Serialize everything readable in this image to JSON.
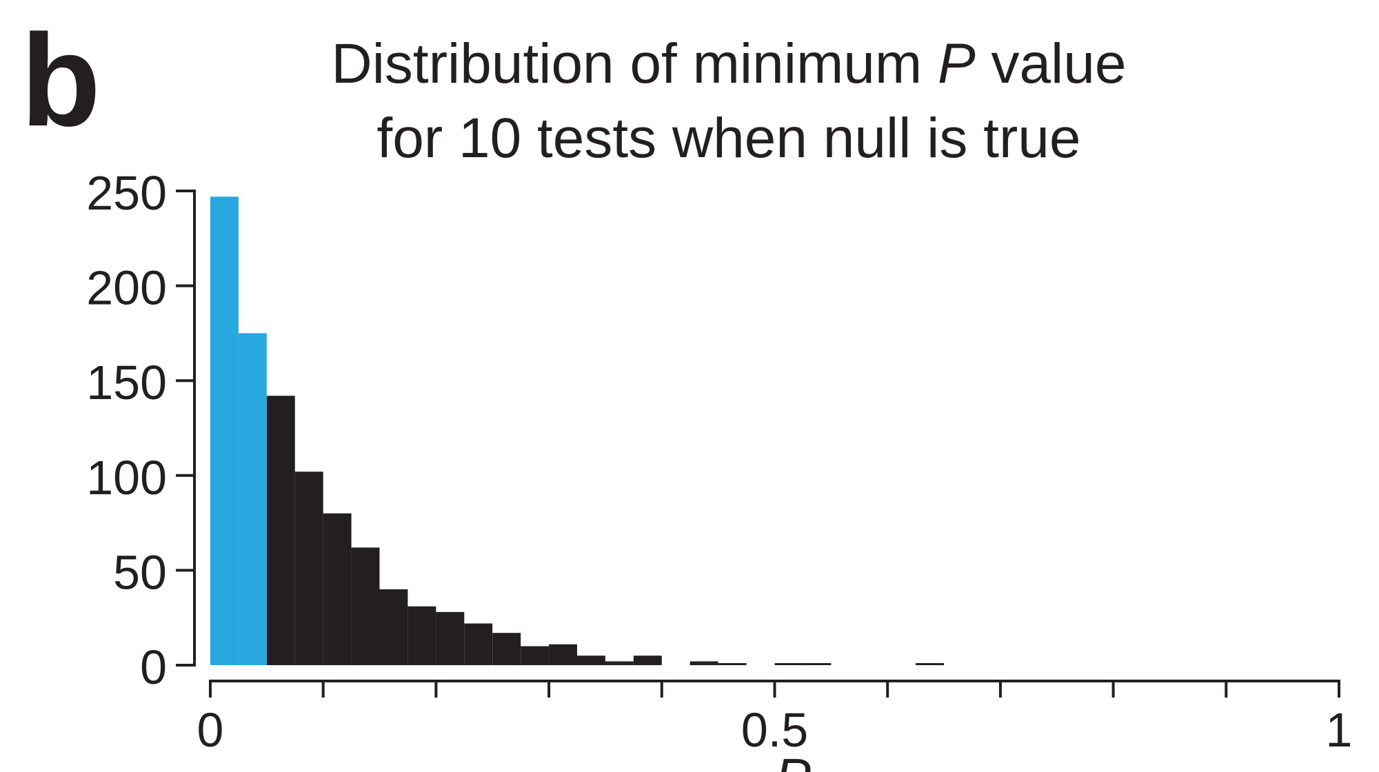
{
  "panel_letter": "b",
  "chart_data": {
    "type": "bar",
    "title_parts": [
      "Distribution of minimum ",
      "P",
      " value"
    ],
    "title_line2": "for 10 tests when null is true",
    "xlabel": "P",
    "ylabel": "",
    "xlim": [
      0,
      1
    ],
    "ylim": [
      0,
      250
    ],
    "yticks": [
      "0",
      "50",
      "100",
      "150",
      "200",
      "250"
    ],
    "xtick_labels": [
      "0",
      "0.5",
      "1"
    ],
    "xtick_label_values": [
      0,
      0.5,
      1
    ],
    "xtick_minor_step": 0.1,
    "bin_width": 0.025,
    "bins": [
      {
        "x0": 0.0,
        "value": 247,
        "color": "#29a8e0"
      },
      {
        "x0": 0.025,
        "value": 175,
        "color": "#29a8e0"
      },
      {
        "x0": 0.05,
        "value": 142,
        "color": "#231f20"
      },
      {
        "x0": 0.075,
        "value": 102,
        "color": "#231f20"
      },
      {
        "x0": 0.1,
        "value": 80,
        "color": "#231f20"
      },
      {
        "x0": 0.125,
        "value": 62,
        "color": "#231f20"
      },
      {
        "x0": 0.15,
        "value": 40,
        "color": "#231f20"
      },
      {
        "x0": 0.175,
        "value": 31,
        "color": "#231f20"
      },
      {
        "x0": 0.2,
        "value": 28,
        "color": "#231f20"
      },
      {
        "x0": 0.225,
        "value": 22,
        "color": "#231f20"
      },
      {
        "x0": 0.25,
        "value": 17,
        "color": "#231f20"
      },
      {
        "x0": 0.275,
        "value": 10,
        "color": "#231f20"
      },
      {
        "x0": 0.3,
        "value": 11,
        "color": "#231f20"
      },
      {
        "x0": 0.325,
        "value": 5,
        "color": "#231f20"
      },
      {
        "x0": 0.35,
        "value": 2,
        "color": "#231f20"
      },
      {
        "x0": 0.375,
        "value": 5,
        "color": "#231f20"
      },
      {
        "x0": 0.425,
        "value": 2,
        "color": "#231f20"
      },
      {
        "x0": 0.45,
        "value": 1,
        "color": "#231f20"
      },
      {
        "x0": 0.5,
        "value": 1,
        "color": "#231f20"
      },
      {
        "x0": 0.525,
        "value": 1,
        "color": "#231f20"
      },
      {
        "x0": 0.625,
        "value": 1,
        "color": "#231f20"
      }
    ],
    "highlight_color": "#29a8e0",
    "bar_color": "#231f20"
  }
}
